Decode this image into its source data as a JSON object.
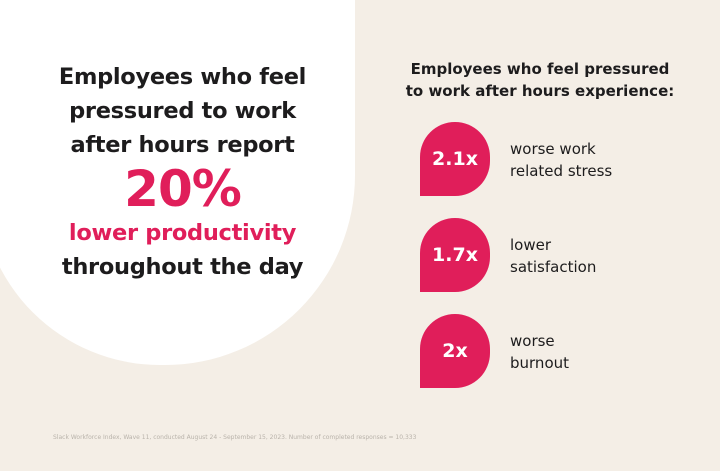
{
  "colors": {
    "accent": "#e01e5a",
    "background": "#f4eee6",
    "text": "#1d1c1d"
  },
  "headline": {
    "lines": [
      "Employees who feel",
      "pressured to work",
      "after hours report"
    ],
    "stat": "20%",
    "stat_label": "lower productivity",
    "tail": "throughout the day"
  },
  "right": {
    "heading_lines": [
      "Employees who feel pressured",
      "to work after hours experience:"
    ],
    "items": [
      {
        "value": "2.1x",
        "label_lines": [
          "worse work",
          "related stress"
        ]
      },
      {
        "value": "1.7x",
        "label_lines": [
          "lower",
          "satisfaction"
        ]
      },
      {
        "value": "2x",
        "label_lines": [
          "worse",
          "burnout"
        ]
      }
    ]
  },
  "footnote": "Slack Workforce Index, Wave 11, conducted August 24 - September 15, 2023. Number of completed responses = 10,333"
}
